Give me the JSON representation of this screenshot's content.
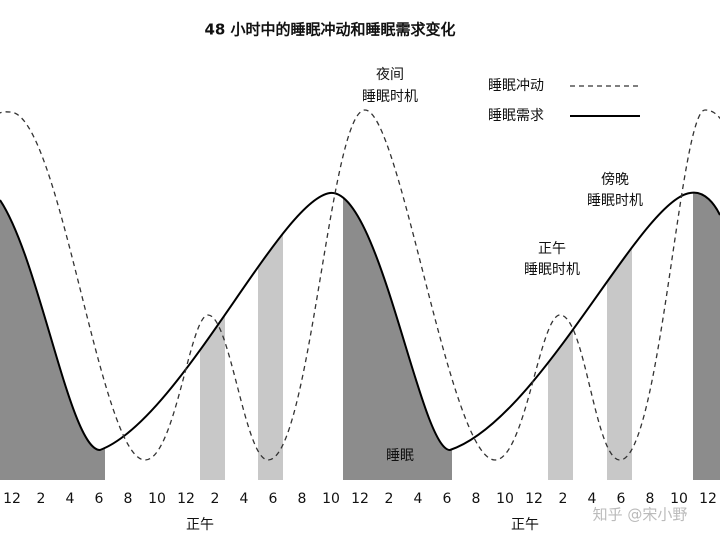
{
  "title": "48 小时中的睡眠冲动和睡眠需求变化",
  "legend": {
    "drive": "睡眠冲动",
    "need": "睡眠需求"
  },
  "annotations": {
    "night": [
      "夜间",
      "睡眠时机"
    ],
    "evening": [
      "傍晚",
      "睡眠时机"
    ],
    "noon": [
      "正午",
      "睡眠时机"
    ],
    "sleep": "睡眠"
  },
  "x_labels": [
    "12",
    "2",
    "4",
    "6",
    "8",
    "10",
    "12",
    "2",
    "4",
    "6",
    "8",
    "10",
    "12",
    "2",
    "4",
    "6",
    "8",
    "10",
    "12",
    "2",
    "4",
    "6",
    "8",
    "10",
    "12"
  ],
  "noon_labels": [
    "正午",
    "正午"
  ],
  "watermark": "知乎 @宋小野"
}
